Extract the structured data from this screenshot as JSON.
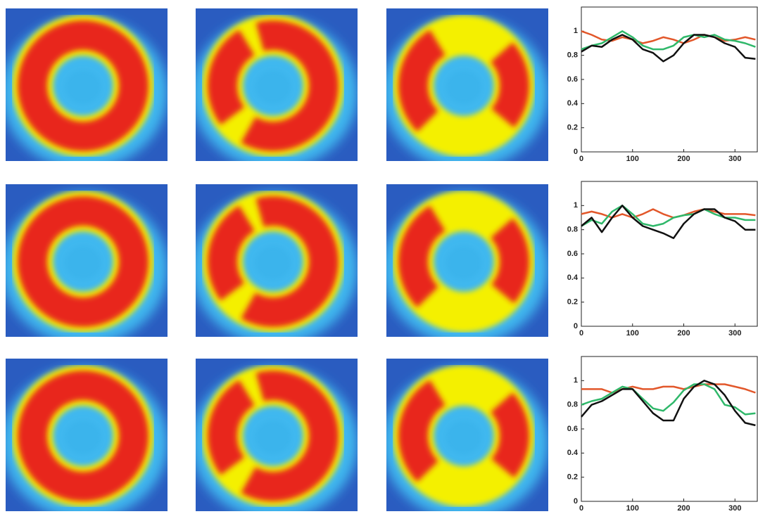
{
  "chart_data": [
    {
      "type": "line",
      "x": [
        0,
        20,
        40,
        60,
        80,
        100,
        120,
        140,
        160,
        180,
        200,
        220,
        240,
        260,
        280,
        300,
        320,
        340
      ],
      "xlim": [
        0,
        345
      ],
      "ylim": [
        0,
        1.2
      ],
      "xticks": [
        0,
        100,
        200,
        300
      ],
      "yticks": [
        0,
        0.2,
        0.4,
        0.6,
        0.8,
        1
      ],
      "series": [
        {
          "color": "#e2572a",
          "values": [
            1.0,
            0.97,
            0.93,
            0.92,
            0.95,
            0.93,
            0.9,
            0.92,
            0.95,
            0.93,
            0.9,
            0.93,
            0.97,
            0.95,
            0.92,
            0.93,
            0.95,
            0.93
          ]
        },
        {
          "color": "#2fb86a",
          "values": [
            0.85,
            0.88,
            0.9,
            0.95,
            1.0,
            0.95,
            0.88,
            0.85,
            0.85,
            0.88,
            0.95,
            0.97,
            0.95,
            0.97,
            0.93,
            0.92,
            0.9,
            0.87
          ]
        },
        {
          "color": "#111111",
          "values": [
            0.83,
            0.88,
            0.87,
            0.93,
            0.97,
            0.93,
            0.85,
            0.82,
            0.75,
            0.8,
            0.9,
            0.97,
            0.97,
            0.95,
            0.9,
            0.87,
            0.78,
            0.77
          ]
        }
      ]
    },
    {
      "type": "line",
      "x": [
        0,
        20,
        40,
        60,
        80,
        100,
        120,
        140,
        160,
        180,
        200,
        220,
        240,
        260,
        280,
        300,
        320,
        340
      ],
      "xlim": [
        0,
        345
      ],
      "ylim": [
        0,
        1.2
      ],
      "xticks": [
        0,
        100,
        200,
        300
      ],
      "yticks": [
        0,
        0.2,
        0.4,
        0.6,
        0.8,
        1
      ],
      "series": [
        {
          "color": "#e2572a",
          "values": [
            0.93,
            0.95,
            0.93,
            0.9,
            0.93,
            0.9,
            0.93,
            0.97,
            0.93,
            0.9,
            0.92,
            0.95,
            0.97,
            0.95,
            0.93,
            0.93,
            0.93,
            0.92
          ]
        },
        {
          "color": "#2fb86a",
          "values": [
            0.83,
            0.88,
            0.85,
            0.95,
            1.0,
            0.93,
            0.85,
            0.83,
            0.85,
            0.9,
            0.92,
            0.93,
            0.97,
            0.93,
            0.9,
            0.9,
            0.88,
            0.88
          ]
        },
        {
          "color": "#111111",
          "values": [
            0.83,
            0.9,
            0.78,
            0.9,
            1.0,
            0.9,
            0.83,
            0.8,
            0.77,
            0.73,
            0.85,
            0.93,
            0.97,
            0.97,
            0.9,
            0.87,
            0.8,
            0.8
          ]
        }
      ]
    },
    {
      "type": "line",
      "x": [
        0,
        20,
        40,
        60,
        80,
        100,
        120,
        140,
        160,
        180,
        200,
        220,
        240,
        260,
        280,
        300,
        320,
        340
      ],
      "xlim": [
        0,
        345
      ],
      "ylim": [
        0,
        1.2
      ],
      "xticks": [
        0,
        100,
        200,
        300
      ],
      "yticks": [
        0,
        0.2,
        0.4,
        0.6,
        0.8,
        1
      ],
      "series": [
        {
          "color": "#e2572a",
          "values": [
            0.93,
            0.93,
            0.93,
            0.9,
            0.93,
            0.95,
            0.93,
            0.93,
            0.95,
            0.95,
            0.93,
            0.95,
            0.97,
            0.97,
            0.97,
            0.95,
            0.93,
            0.9
          ]
        },
        {
          "color": "#2fb86a",
          "values": [
            0.8,
            0.83,
            0.85,
            0.9,
            0.95,
            0.93,
            0.85,
            0.77,
            0.75,
            0.82,
            0.92,
            0.97,
            0.97,
            0.93,
            0.8,
            0.78,
            0.72,
            0.73
          ]
        },
        {
          "color": "#111111",
          "values": [
            0.7,
            0.8,
            0.83,
            0.88,
            0.93,
            0.93,
            0.83,
            0.73,
            0.67,
            0.67,
            0.85,
            0.95,
            1.0,
            0.97,
            0.88,
            0.75,
            0.65,
            0.63
          ]
        }
      ]
    }
  ]
}
